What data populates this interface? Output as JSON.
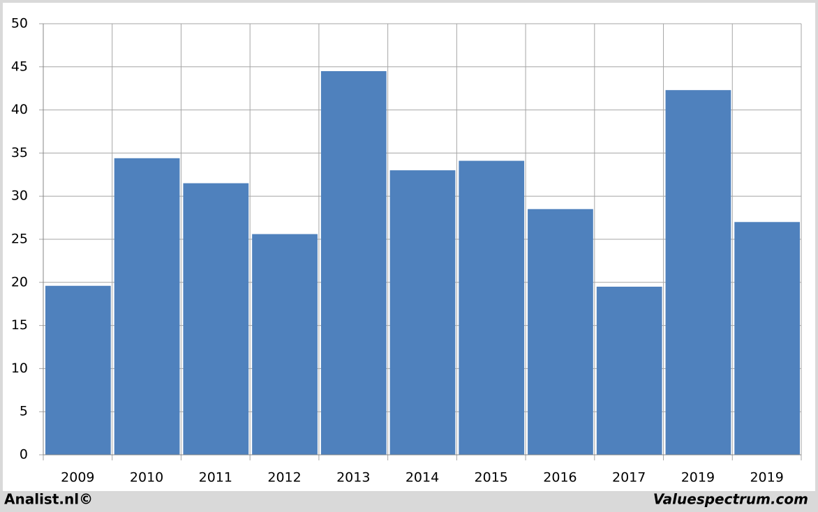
{
  "chart_data": {
    "type": "bar",
    "categories": [
      "2009",
      "2010",
      "2011",
      "2012",
      "2013",
      "2014",
      "2015",
      "2016",
      "2017",
      "2019",
      "2019"
    ],
    "values": [
      19.6,
      34.4,
      31.5,
      25.6,
      44.5,
      33.0,
      34.1,
      28.5,
      19.5,
      42.3,
      27.0
    ],
    "color": "#4f81bd",
    "ylim": [
      0,
      50
    ],
    "yticks": [
      0,
      5,
      10,
      15,
      20,
      25,
      30,
      35,
      40,
      45,
      50
    ],
    "grid": true,
    "annotations": [
      "Analist.nl©",
      "Valuespectrum.com"
    ]
  }
}
